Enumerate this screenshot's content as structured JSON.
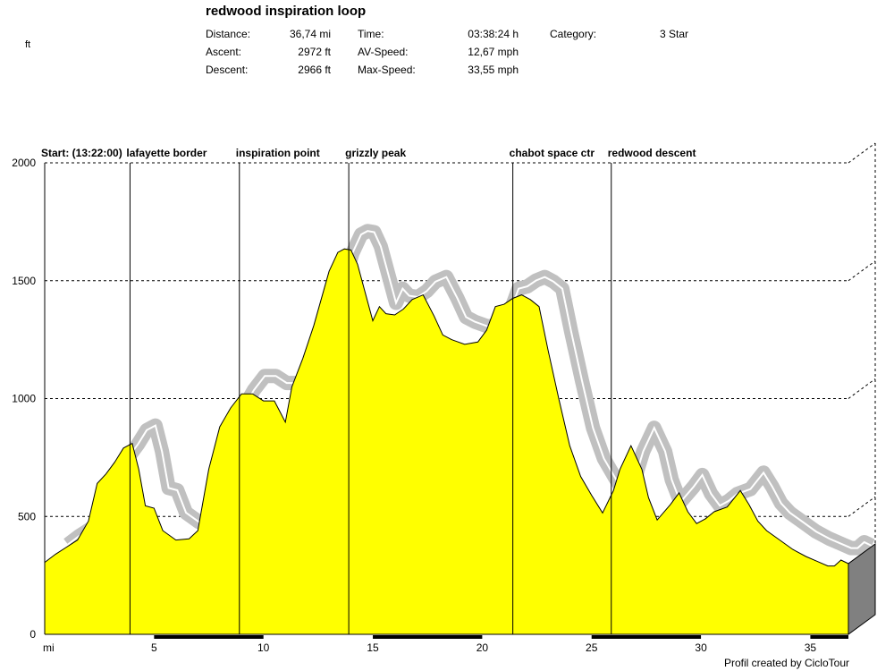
{
  "header": {
    "title": "redwood inspiration loop",
    "distance_label": "Distance:",
    "distance_value": "36,74 mi",
    "ascent_label": "Ascent:",
    "ascent_value": "2972 ft",
    "descent_label": "Descent:",
    "descent_value": "2966 ft",
    "time_label": "Time:",
    "time_value": "03:38:24 h",
    "avspeed_label": "AV-Speed:",
    "avspeed_value": "12,67 mph",
    "maxspeed_label": "Max-Speed:",
    "maxspeed_value": "33,55 mph",
    "category_label": "Category:",
    "category_value": "3 Star"
  },
  "footer": {
    "credit": "Profil created by CicloTour"
  },
  "chart_data": {
    "type": "area",
    "ylabel": "ft",
    "xlabel": "mi",
    "xlim": [
      0,
      36.74
    ],
    "ylim": [
      0,
      2000
    ],
    "y_ticks": [
      0,
      500,
      1000,
      1500,
      2000
    ],
    "x_ticks": [
      5,
      10,
      15,
      20,
      25,
      30,
      35
    ],
    "grid": true,
    "fill_color": "#ffff00",
    "shadow_color": "#c0c0c0",
    "waypoints": [
      {
        "name": "Start: (13:22:00)",
        "x": 0
      },
      {
        "name": "lafayette border",
        "x": 3.9
      },
      {
        "name": "inspiration point",
        "x": 8.9
      },
      {
        "name": "grizzly peak",
        "x": 13.9
      },
      {
        "name": "chabot space ctr",
        "x": 21.4
      },
      {
        "name": "redwood descent",
        "x": 25.9
      }
    ],
    "x": [
      0,
      0.5,
      1,
      1.5,
      2,
      2.4,
      2.8,
      3.2,
      3.6,
      4,
      4.3,
      4.6,
      5,
      5.4,
      6,
      6.6,
      7,
      7.5,
      8,
      8.5,
      9,
      9.5,
      10,
      10.5,
      11,
      11.3,
      11.8,
      12.3,
      13,
      13.4,
      13.7,
      14,
      14.3,
      15,
      15.3,
      15.6,
      16,
      16.4,
      16.8,
      17.3,
      17.8,
      18.2,
      18.6,
      19.2,
      19.8,
      20.2,
      20.6,
      21,
      21.4,
      21.8,
      22.2,
      22.6,
      23,
      23.5,
      24,
      24.5,
      25,
      25.5,
      26,
      26.3,
      26.8,
      27.3,
      27.6,
      28,
      28.6,
      29,
      29.4,
      29.8,
      30.2,
      30.6,
      31.2,
      31.8,
      32.2,
      32.6,
      33,
      33.6,
      34.2,
      34.8,
      35.3,
      35.8,
      36.1,
      36.4,
      36.74
    ],
    "y": [
      305,
      340,
      370,
      400,
      480,
      640,
      680,
      730,
      790,
      810,
      700,
      545,
      535,
      440,
      400,
      405,
      440,
      700,
      880,
      960,
      1020,
      1020,
      990,
      990,
      900,
      1050,
      1170,
      1310,
      1540,
      1620,
      1635,
      1630,
      1570,
      1330,
      1390,
      1360,
      1355,
      1380,
      1420,
      1440,
      1350,
      1270,
      1250,
      1230,
      1240,
      1290,
      1390,
      1400,
      1425,
      1440,
      1420,
      1390,
      1210,
      1000,
      800,
      670,
      590,
      515,
      610,
      700,
      800,
      700,
      580,
      485,
      550,
      600,
      520,
      470,
      490,
      520,
      540,
      610,
      550,
      480,
      440,
      400,
      360,
      330,
      310,
      290,
      290,
      315,
      300
    ]
  }
}
